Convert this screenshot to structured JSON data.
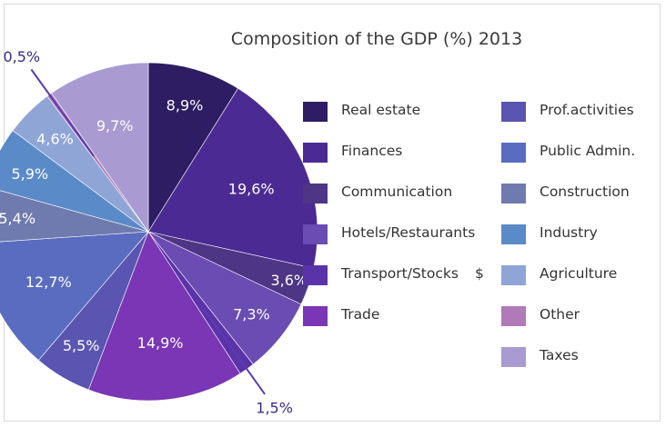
{
  "chart_data": {
    "type": "pie",
    "title": "Composition of the GDP (%) 2013",
    "slices": [
      {
        "label": "Real estate",
        "value": 8.9,
        "value_label": "8,9%",
        "color": "#2e1d62"
      },
      {
        "label": "Finances",
        "value": 19.6,
        "value_label": "19,6%",
        "color": "#4b2b93"
      },
      {
        "label": "Communication",
        "value": 3.6,
        "value_label": "3,6%",
        "color": "#4e3585"
      },
      {
        "label": "Hotels/Restaurants",
        "value": 7.3,
        "value_label": "7,3%",
        "color": "#6a4cb2"
      },
      {
        "label": "Transport/Stocks",
        "value": 1.5,
        "value_label": "1,5%",
        "color": "#5a33a8"
      },
      {
        "label": "Trade",
        "value": 14.9,
        "value_label": "14,9%",
        "color": "#7a36b5"
      },
      {
        "label": "Prof.activities",
        "value": 5.5,
        "value_label": "5,5%",
        "color": "#5a55b0"
      },
      {
        "label": "Public Admin.",
        "value": 12.7,
        "value_label": "12,7%",
        "color": "#5a6cc0"
      },
      {
        "label": "Construction",
        "value": 5.4,
        "value_label": "5,4%",
        "color": "#6f7aae"
      },
      {
        "label": "Industry",
        "value": 5.9,
        "value_label": "5,9%",
        "color": "#5a8ac8"
      },
      {
        "label": "Agriculture",
        "value": 4.6,
        "value_label": "4,6%",
        "color": "#8ea5d6"
      },
      {
        "label": "Other",
        "value": 0.5,
        "value_label": "0,5%",
        "color": "#b07ab8"
      },
      {
        "label": "Taxes",
        "value": 9.7,
        "value_label": "9,7%",
        "color": "#a99ad2"
      }
    ],
    "legend": {
      "placement": "right",
      "columns": [
        [
          "Real estate",
          "Finances",
          "Communication",
          "Hotels/Restaurants",
          "Transport/Stocks",
          "Trade"
        ],
        [
          "Prof.activities",
          "Public Admin.",
          "Construction",
          "Industry",
          "Agriculture",
          "Other",
          "Taxes"
        ]
      ],
      "stray_mark": "$"
    }
  }
}
